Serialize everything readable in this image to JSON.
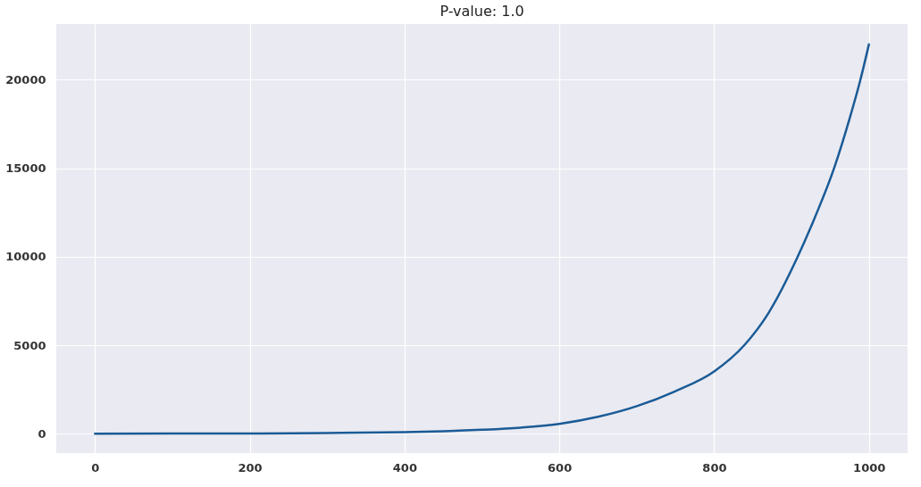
{
  "chart_data": {
    "type": "line",
    "title": "P-value: 1.0",
    "x": [
      0,
      100,
      200,
      300,
      400,
      450,
      500,
      550,
      600,
      650,
      700,
      750,
      800,
      839,
      870,
      908,
      930,
      955,
      975,
      989,
      1000
    ],
    "series": [
      {
        "color": "#1a5b96",
        "values": [
          0,
          10,
          10,
          40,
          90,
          140,
          220,
          340,
          550,
          950,
          1550,
          2400,
          3515,
          5000,
          6800,
          10000,
          12200,
          15000,
          17800,
          20000,
          22000
        ]
      }
    ],
    "xlim": [
      -50,
      1050
    ],
    "ylim": [
      -1100,
      23150
    ],
    "xticks": [
      0,
      200,
      400,
      600,
      800,
      1000
    ],
    "yticks": [
      0,
      5000,
      10000,
      15000,
      20000
    ],
    "grid": true,
    "marker": "none",
    "line_style": "solid"
  }
}
